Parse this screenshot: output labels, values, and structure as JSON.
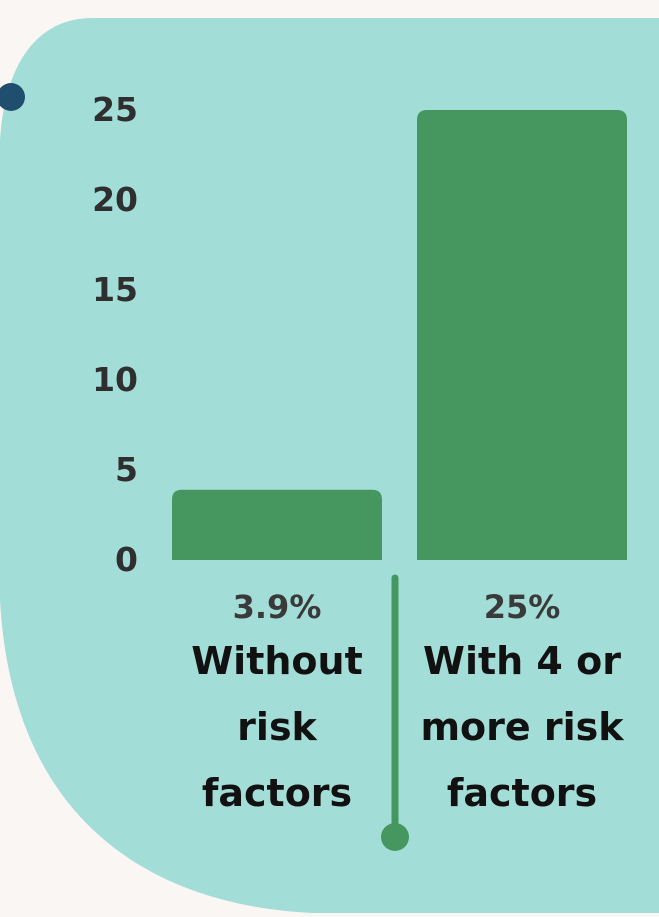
{
  "chart_data": {
    "type": "bar",
    "categories": [
      "Without\nrisk\nfactors",
      "With 4 or\nmore risk\nfactors"
    ],
    "values": [
      3.9,
      25
    ],
    "value_labels": [
      "3.9%",
      "25%"
    ],
    "yticks": [
      "0",
      "5",
      "10",
      "15",
      "20",
      "25"
    ],
    "ylim": [
      0,
      25
    ],
    "grid": false,
    "title": "",
    "xlabel": "",
    "ylabel": ""
  },
  "colors": {
    "background": "#faf6f4",
    "panel": "#a3ddd7",
    "bar": "#45975f",
    "divider": "#45975f",
    "bullet_dot": "#1f4e6e"
  }
}
